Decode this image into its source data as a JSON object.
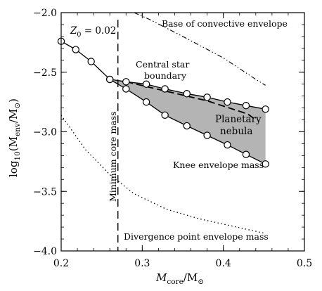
{
  "chart_data": {
    "type": "line",
    "xlabel": {
      "main": "M",
      "sub": "core",
      "tail": "/M",
      "sun": "⊙"
    },
    "ylabel": {
      "head": "log",
      "sub10": "10",
      "paren": "(M",
      "sub": "env",
      "tail": "/M",
      "sun": "⊙",
      "close": ")"
    },
    "xlim": [
      0.2,
      0.5
    ],
    "ylim": [
      -4.0,
      -2.0
    ],
    "xticks": [
      {
        "v": 0.2,
        "label": "0.2"
      },
      {
        "v": 0.3,
        "label": "0.3"
      },
      {
        "v": 0.4,
        "label": "0.4"
      },
      {
        "v": 0.5,
        "label": "0.5"
      }
    ],
    "yticks": [
      {
        "v": -2.0,
        "label": "−2.0"
      },
      {
        "v": -2.5,
        "label": "−2.5"
      },
      {
        "v": -3.0,
        "label": "−3.0"
      },
      {
        "v": -3.5,
        "label": "−3.5"
      },
      {
        "v": -4.0,
        "label": "−4.0"
      }
    ],
    "minor_x_step": 0.02,
    "minor_y_step": 0.1,
    "metallicity_label": {
      "sym": "Z",
      "sub": "0",
      "eq": " = 0.02"
    },
    "series": [
      {
        "name": "Central star boundary",
        "style": "solid-markers",
        "x": [
          0.2,
          0.218,
          0.237,
          0.26,
          0.28,
          0.305,
          0.328,
          0.355,
          0.38,
          0.405,
          0.428,
          0.452
        ],
        "y": [
          -2.24,
          -2.31,
          -2.41,
          -2.56,
          -2.58,
          -2.6,
          -2.64,
          -2.68,
          -2.71,
          -2.75,
          -2.78,
          -2.81
        ]
      },
      {
        "name": "Knee envelope mass",
        "style": "solid-markers",
        "x": [
          0.26,
          0.28,
          0.305,
          0.328,
          0.355,
          0.38,
          0.405,
          0.428,
          0.452
        ],
        "y": [
          -2.56,
          -2.64,
          -2.75,
          -2.86,
          -2.95,
          -3.03,
          -3.11,
          -3.19,
          -3.27
        ]
      },
      {
        "name": "Central star boundary (dashed)",
        "style": "dashed",
        "x": [
          0.28,
          0.33,
          0.38,
          0.43,
          0.44
        ],
        "y": [
          -2.58,
          -2.66,
          -2.74,
          -2.85,
          -2.9
        ]
      },
      {
        "name": "Base of convective envelope",
        "style": "dash-dot",
        "x": [
          0.29,
          0.31,
          0.35,
          0.4,
          0.44,
          0.452
        ],
        "y": [
          -2.0,
          -2.06,
          -2.2,
          -2.38,
          -2.56,
          -2.61
        ]
      },
      {
        "name": "Divergence point envelope mass",
        "style": "dotted",
        "x": [
          0.2,
          0.23,
          0.26,
          0.29,
          0.33,
          0.37,
          0.41,
          0.45
        ],
        "y": [
          -2.86,
          -3.15,
          -3.36,
          -3.52,
          -3.65,
          -3.73,
          -3.79,
          -3.85
        ]
      }
    ],
    "vline": {
      "x": 0.27,
      "label": "Minimum core mass"
    },
    "shaded_region": {
      "label_line1": "Planetary",
      "label_line2": "nebula"
    },
    "labels": {
      "base": "Base of convective envelope",
      "central1": "Central star",
      "central2": "boundary",
      "knee": "Knee envelope mass",
      "divergence": "Divergence point envelope mass"
    }
  }
}
